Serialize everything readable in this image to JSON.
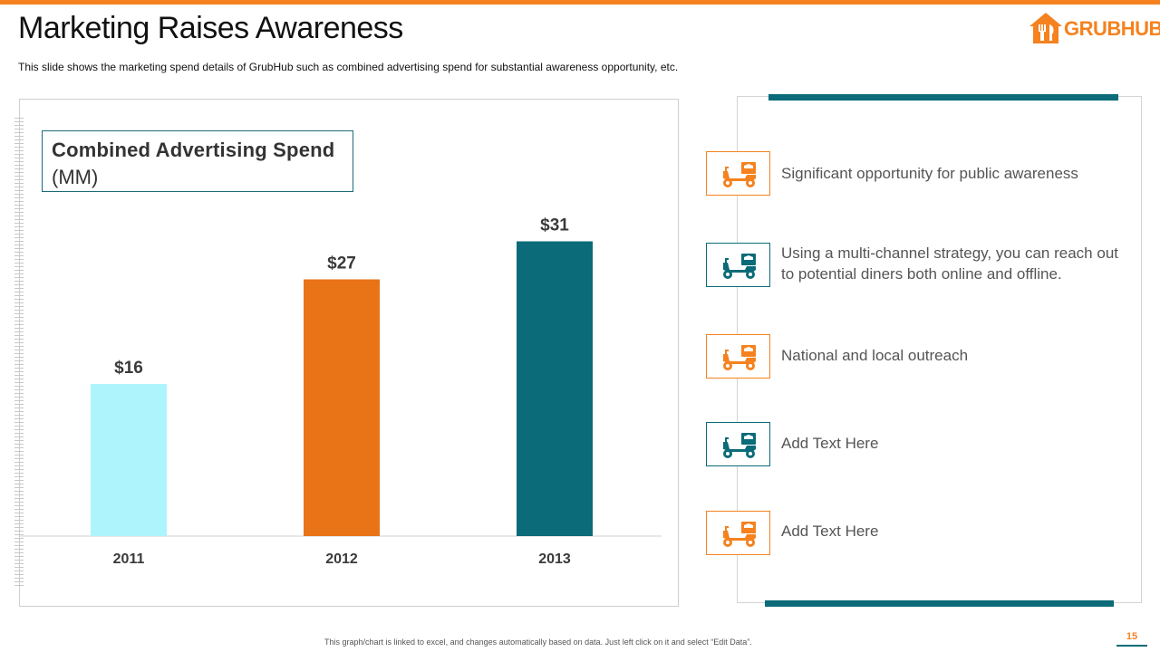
{
  "header": {
    "title": "Marketing Raises Awareness",
    "subtitle": "This slide shows the marketing spend details of GrubHub such as combined advertising spend for substantial awareness opportunity, etc.",
    "logo_text": "GRUBHUB"
  },
  "colors": {
    "orange": "#F5821F",
    "teal": "#0B6B78",
    "light_cyan": "#AEF4FD",
    "bar_orange": "#E97317"
  },
  "chart_data": {
    "type": "bar",
    "title_main": "Combined Advertising Spend",
    "title_unit": "(MM)",
    "categories": [
      "2011",
      "2012",
      "2013"
    ],
    "values": [
      16,
      27,
      31
    ],
    "value_labels": [
      "$16",
      "$27",
      "$31"
    ],
    "bar_colors": [
      "#AEF4FD",
      "#E97317",
      "#0B6B78"
    ],
    "ylim": [
      0,
      34
    ],
    "xlabel": "",
    "ylabel": "",
    "grid": false
  },
  "items": [
    {
      "text": "Significant opportunity for public awareness",
      "icon": "delivery-scooter-icon",
      "color": "orange"
    },
    {
      "text": "Using a multi-channel strategy, you can reach out to potential diners both online and offline.",
      "icon": "delivery-scooter-icon",
      "color": "teal"
    },
    {
      "text": "National and local outreach",
      "icon": "delivery-scooter-icon",
      "color": "orange"
    },
    {
      "text": "Add Text Here",
      "icon": "delivery-scooter-icon",
      "color": "teal"
    },
    {
      "text": "Add Text Here",
      "icon": "delivery-scooter-icon",
      "color": "orange"
    }
  ],
  "footer": {
    "note": "This graph/chart is linked to excel, and changes automatically based on data. Just left click on it and select “Edit Data”.",
    "page_number": "15"
  }
}
